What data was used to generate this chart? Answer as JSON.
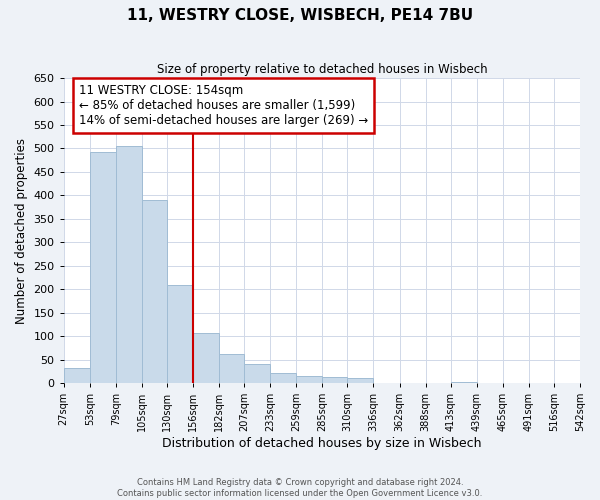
{
  "title": "11, WESTRY CLOSE, WISBECH, PE14 7BU",
  "subtitle": "Size of property relative to detached houses in Wisbech",
  "xlabel": "Distribution of detached houses by size in Wisbech",
  "ylabel": "Number of detached properties",
  "bar_edges": [
    27,
    53,
    79,
    105,
    130,
    156,
    182,
    207,
    233,
    259,
    285,
    310,
    336,
    362,
    388,
    413,
    439,
    465,
    491,
    516,
    542
  ],
  "bar_heights": [
    33,
    492,
    505,
    390,
    210,
    107,
    62,
    40,
    22,
    14,
    13,
    11,
    0,
    0,
    0,
    2,
    0,
    0,
    0,
    1
  ],
  "bar_color": "#c9daea",
  "bar_edge_color": "#a0bcd4",
  "property_line_x": 156,
  "property_line_color": "#cc0000",
  "annotation_line1": "11 WESTRY CLOSE: 154sqm",
  "annotation_line2": "← 85% of detached houses are smaller (1,599)",
  "annotation_line3": "14% of semi-detached houses are larger (269) →",
  "annotation_box_color": "#ffffff",
  "annotation_box_edge": "#cc0000",
  "ylim": [
    0,
    650
  ],
  "yticks": [
    0,
    50,
    100,
    150,
    200,
    250,
    300,
    350,
    400,
    450,
    500,
    550,
    600,
    650
  ],
  "tick_labels": [
    "27sqm",
    "53sqm",
    "79sqm",
    "105sqm",
    "130sqm",
    "156sqm",
    "182sqm",
    "207sqm",
    "233sqm",
    "259sqm",
    "285sqm",
    "310sqm",
    "336sqm",
    "362sqm",
    "388sqm",
    "413sqm",
    "439sqm",
    "465sqm",
    "491sqm",
    "516sqm",
    "542sqm"
  ],
  "footer_text": "Contains HM Land Registry data © Crown copyright and database right 2024.\nContains public sector information licensed under the Open Government Licence v3.0.",
  "background_color": "#eef2f7",
  "plot_bg_color": "#ffffff",
  "grid_color": "#d0d8e8"
}
